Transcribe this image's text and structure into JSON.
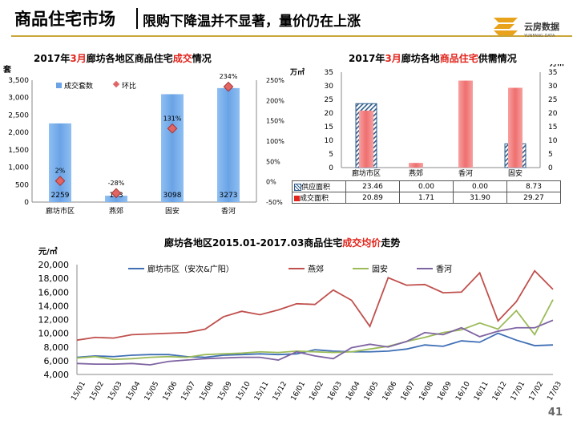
{
  "header": {
    "title": "商品住宅市场",
    "subtitle": "限购下降温并不显著，量价仍在上涨"
  },
  "logo": {
    "name": "云房数据",
    "tagline": "YUNFANG DATA"
  },
  "page_number": "41",
  "colors": {
    "accent": "#c9a63a",
    "highlight": "#e0241b",
    "bar_blue": "#6fa8e8",
    "bar_red": "#f27777",
    "supply_hatch": "#2e5c8a"
  },
  "chart_data": [
    {
      "type": "bar",
      "title_parts": [
        "2017年",
        "3月",
        "廊坊各地区商品住宅",
        "成交",
        "情况"
      ],
      "ylabel": "套",
      "categories": [
        "廊坊市区",
        "燕郊",
        "固安",
        "香河"
      ],
      "series": [
        {
          "name": "成交套数",
          "values": [
            2259,
            183,
            3098,
            3273
          ]
        },
        {
          "name": "环比",
          "values": [
            2,
            -28,
            131,
            234
          ]
        }
      ],
      "data_labels": [
        "2259",
        "183",
        "3098",
        "3273"
      ],
      "mom_labels": [
        "2%",
        "-28%",
        "131%",
        "234%"
      ],
      "ylim": [
        0,
        3500
      ],
      "yticks": [
        "0",
        "500",
        "1,000",
        "1,500",
        "2,000",
        "2,500",
        "3,000",
        "3,500"
      ],
      "y2lim": [
        -50,
        250
      ],
      "y2ticks": [
        "-50%",
        "0%",
        "50%",
        "100%",
        "150%",
        "200%",
        "250%"
      ],
      "legend": "top-left"
    },
    {
      "type": "bar",
      "title_parts": [
        "2017年",
        "3月",
        "廊坊各地",
        "商品住宅",
        "供需情况"
      ],
      "ylabel": "万㎡",
      "ylabel_right": "万㎡",
      "categories": [
        "廊坊市区",
        "燕郊",
        "香河",
        "固安"
      ],
      "series": [
        {
          "name": "供应面积",
          "values": [
            23.46,
            0.0,
            0.0,
            8.73
          ],
          "labels": [
            "23.46",
            "0.00",
            "0.00",
            "8.73"
          ]
        },
        {
          "name": "成交面积",
          "values": [
            20.89,
            1.71,
            31.9,
            29.27
          ],
          "labels": [
            "20.89",
            "1.71",
            "31.90",
            "29.27"
          ]
        }
      ],
      "ylim": [
        0,
        35
      ],
      "yticks": [
        "0",
        "5",
        "10",
        "15",
        "20",
        "25",
        "30",
        "35"
      ]
    },
    {
      "type": "line",
      "title_parts": [
        "廊坊各地区2015.01-2017.03商品住宅",
        "成交均价",
        "走势"
      ],
      "ylabel": "元/㎡",
      "x": [
        "15/01",
        "15/02",
        "15/03",
        "15/04",
        "15/05",
        "15/06",
        "15/07",
        "15/08",
        "15/09",
        "15/10",
        "15/11",
        "15/12",
        "16/01",
        "16/02",
        "16/03",
        "16/04",
        "16/05",
        "16/06",
        "16/07",
        "16/08",
        "16/09",
        "16/10",
        "16/11",
        "16/12",
        "17/01",
        "17/02",
        "17/03"
      ],
      "ylim": [
        4000,
        20000
      ],
      "yticks": [
        "4,000",
        "6,000",
        "8,000",
        "10,000",
        "12,000",
        "14,000",
        "16,000",
        "18,000",
        "20,000"
      ],
      "legend": "top",
      "series": [
        {
          "name": "廊坊市区（安次&广阳）",
          "color": "#3f6fb5",
          "values": [
            6500,
            6700,
            6600,
            6800,
            6900,
            6900,
            6600,
            6500,
            6800,
            6900,
            7000,
            6900,
            7000,
            7600,
            7400,
            7300,
            7300,
            7400,
            7700,
            8300,
            8100,
            8900,
            8700,
            10000,
            9000,
            8200,
            8300
          ]
        },
        {
          "name": "燕郊",
          "color": "#c0504d",
          "values": [
            9000,
            9400,
            9300,
            9800,
            9900,
            10000,
            10100,
            10600,
            12400,
            13200,
            12700,
            13400,
            14300,
            14200,
            16300,
            14800,
            11000,
            18100,
            17000,
            17100,
            15900,
            16000,
            18800,
            11800,
            14600,
            19100,
            16400
          ]
        },
        {
          "name": "固安",
          "color": "#9bbb59",
          "values": [
            6400,
            6600,
            6200,
            6300,
            6500,
            6600,
            6500,
            6900,
            7000,
            7100,
            7300,
            7200,
            7400,
            7300,
            7200,
            7300,
            7700,
            8100,
            8800,
            9400,
            10100,
            10500,
            11500,
            10600,
            13300,
            9800,
            14900
          ]
        },
        {
          "name": "香河",
          "color": "#7f64a2",
          "values": [
            5600,
            5500,
            5500,
            5600,
            5400,
            5900,
            6100,
            6300,
            6400,
            6500,
            6500,
            6100,
            7300,
            6700,
            6300,
            7900,
            8400,
            8000,
            8800,
            10100,
            9800,
            10800,
            9500,
            10300,
            10800,
            10800,
            11900
          ]
        }
      ]
    }
  ]
}
